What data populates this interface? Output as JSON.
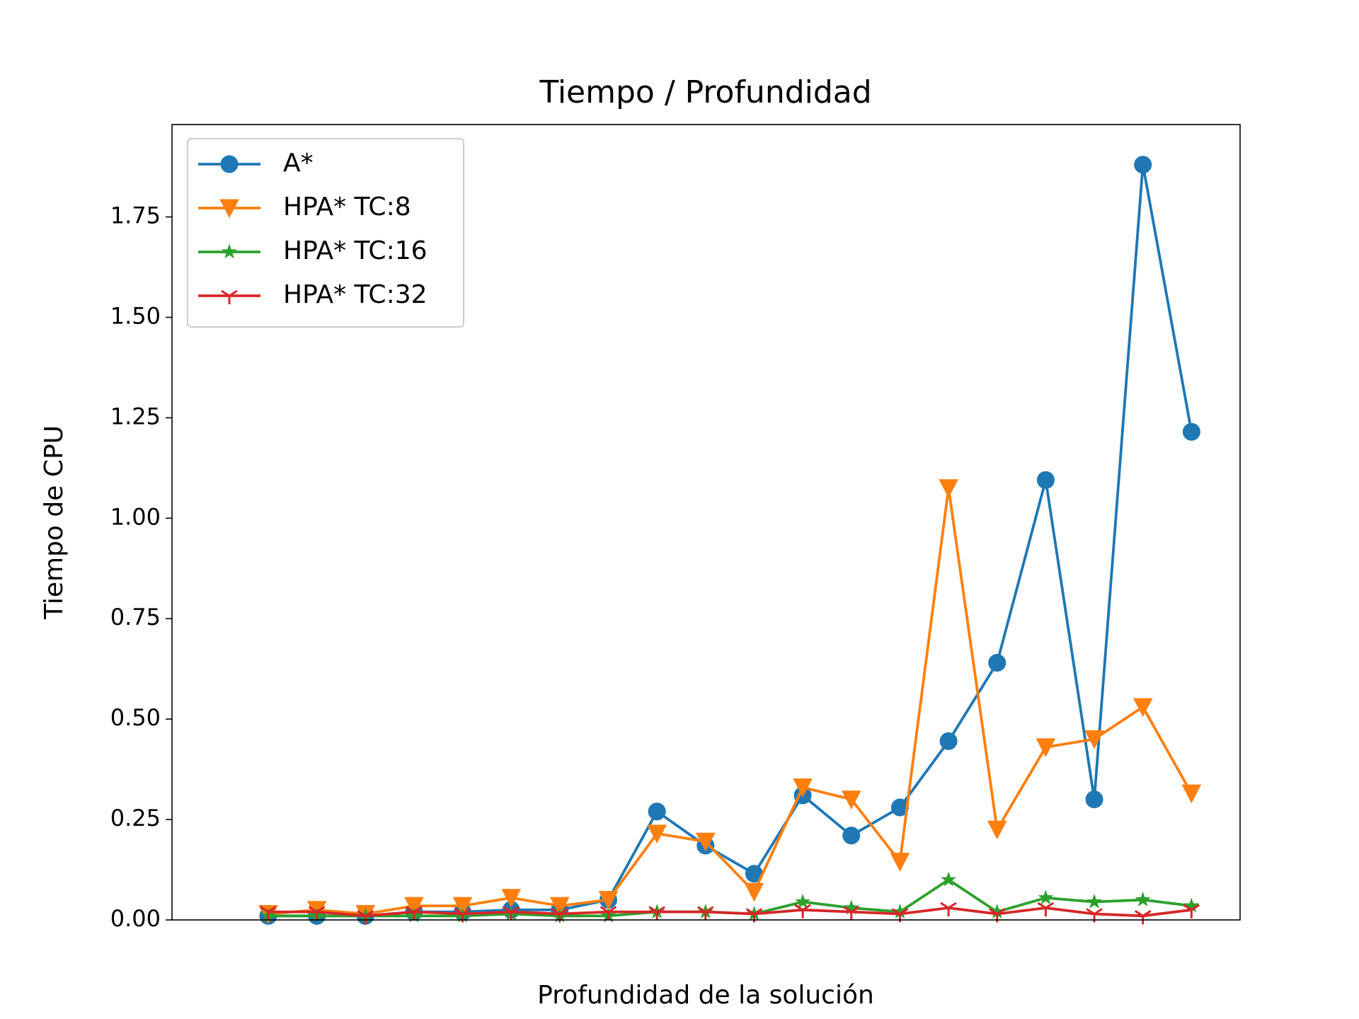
{
  "chart_data": {
    "type": "line",
    "title": "Tiempo / Profundidad",
    "xlabel": "Profundidad de la solución",
    "ylabel": "Tiempo de CPU",
    "x": [
      1,
      2,
      3,
      4,
      5,
      6,
      7,
      8,
      9,
      10,
      11,
      12,
      13,
      14,
      15,
      16,
      17,
      18,
      19,
      20
    ],
    "xlim": [
      -0.98,
      21.0
    ],
    "ylim": [
      0,
      1.98
    ],
    "yticks": [
      {
        "value": 0,
        "label": "0.00"
      },
      {
        "value": 0.25,
        "label": "0.25"
      },
      {
        "value": 0.5,
        "label": "0.50"
      },
      {
        "value": 0.75,
        "label": "0.75"
      },
      {
        "value": 1,
        "label": "1.00"
      },
      {
        "value": 1.25,
        "label": "1.25"
      },
      {
        "value": 1.5,
        "label": "1.50"
      },
      {
        "value": 1.75,
        "label": "1.75"
      }
    ],
    "legend": "upper left",
    "series": [
      {
        "name": "A*",
        "color": "#1f77b4",
        "marker": "circle",
        "values": [
          0.01,
          0.01,
          0.01,
          0.02,
          0.02,
          0.025,
          0.025,
          0.05,
          0.27,
          0.185,
          0.115,
          0.31,
          0.21,
          0.28,
          0.445,
          0.64,
          1.095,
          0.3,
          1.88,
          1.215
        ]
      },
      {
        "name": "HPA* TC:8",
        "color": "#ff7f0e",
        "marker": "triangle",
        "values": [
          0.015,
          0.025,
          0.015,
          0.035,
          0.035,
          0.055,
          0.035,
          0.05,
          0.215,
          0.195,
          0.07,
          0.33,
          0.3,
          0.145,
          1.075,
          0.225,
          0.43,
          0.45,
          0.53,
          0.315
        ]
      },
      {
        "name": "HPA* TC:16",
        "color": "#2ca02c",
        "marker": "star",
        "values": [
          0.01,
          0.01,
          0.01,
          0.01,
          0.01,
          0.015,
          0.01,
          0.01,
          0.02,
          0.02,
          0.015,
          0.045,
          0.03,
          0.02,
          0.1,
          0.02,
          0.055,
          0.045,
          0.05,
          0.035
        ]
      },
      {
        "name": "HPA* TC:32",
        "color": "#d62728",
        "marker": "tri",
        "values": [
          0.02,
          0.02,
          0.01,
          0.02,
          0.015,
          0.02,
          0.015,
          0.02,
          0.02,
          0.02,
          0.015,
          0.025,
          0.02,
          0.015,
          0.03,
          0.015,
          0.03,
          0.015,
          0.01,
          0.025
        ]
      }
    ]
  }
}
